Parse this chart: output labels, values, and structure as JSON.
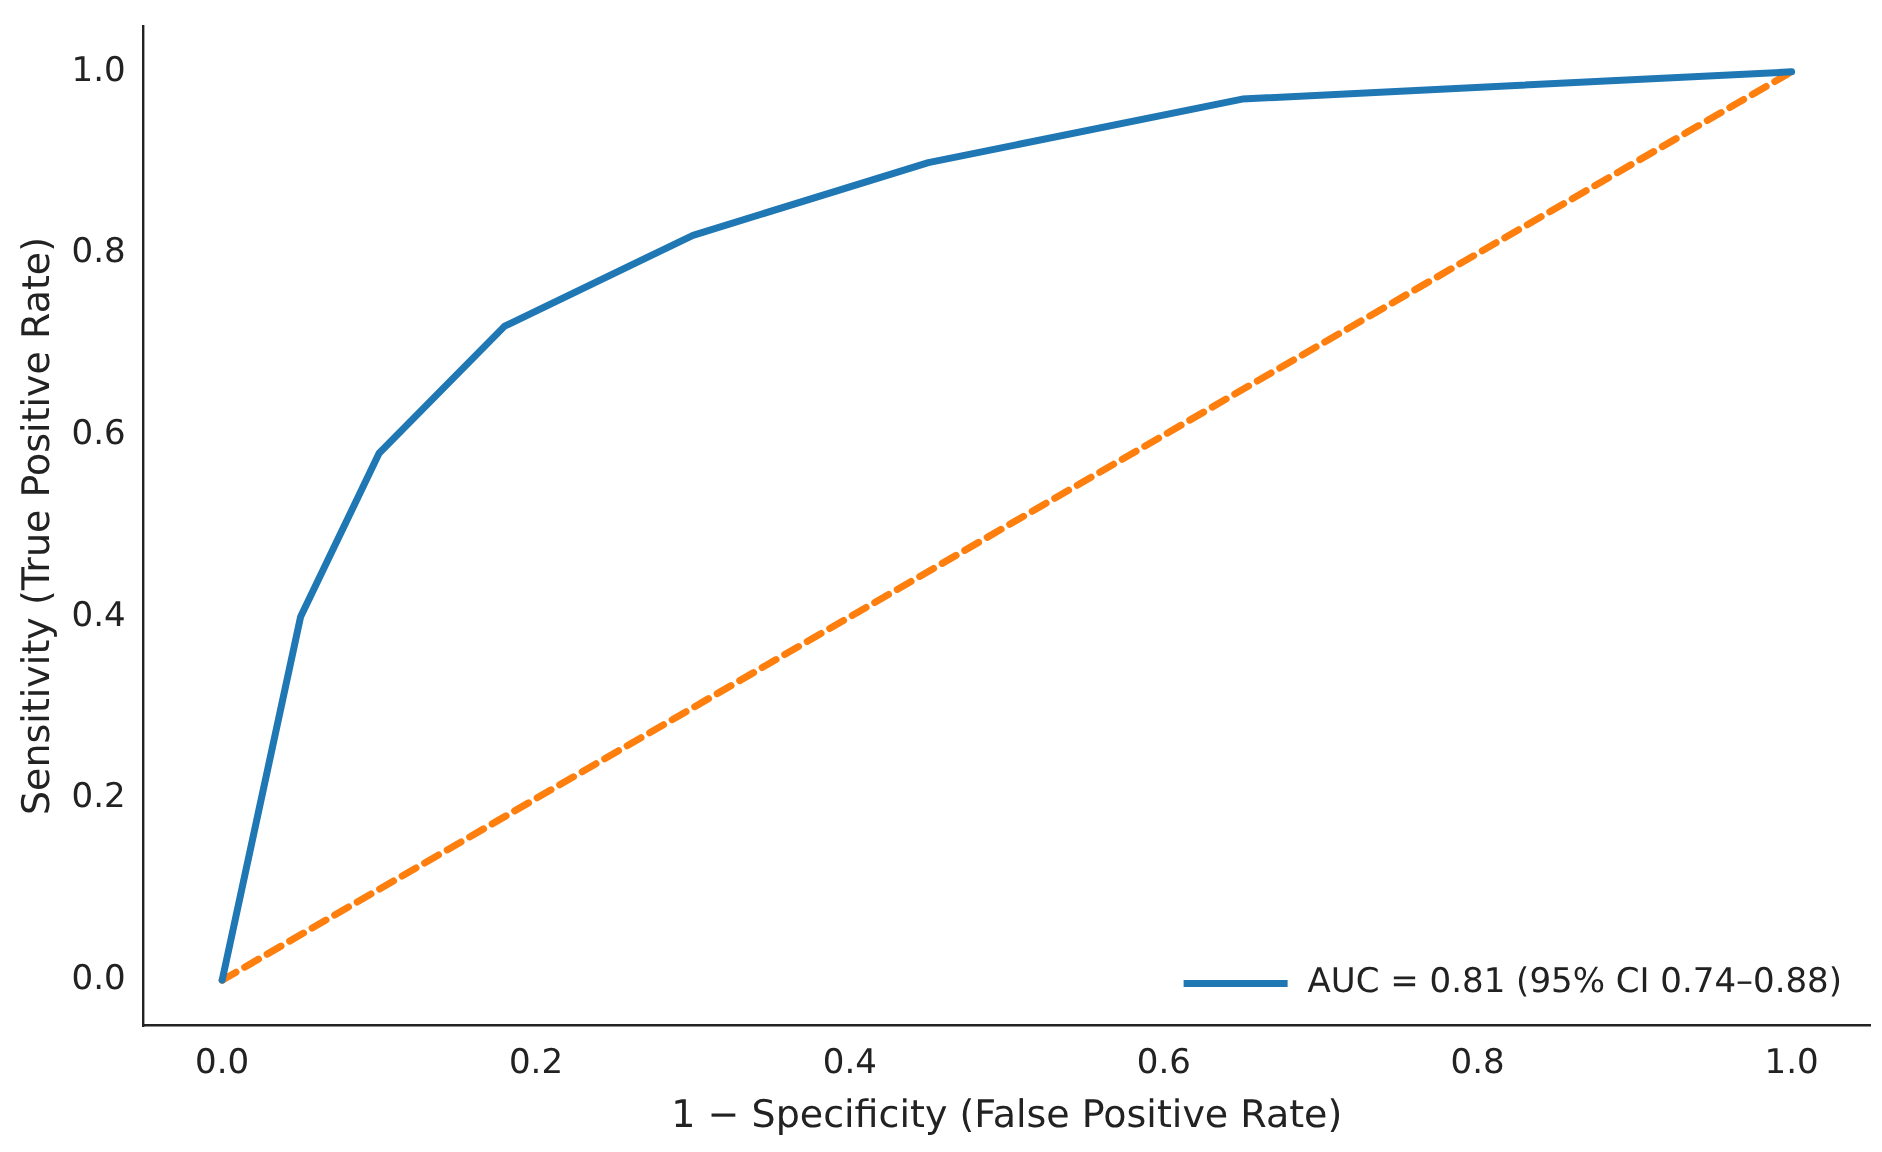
{
  "chart_data": {
    "type": "line",
    "xlabel": "1 − Specificity (False Positive Rate)",
    "ylabel": "Sensitivity (True Positive Rate)",
    "xlim": [
      -0.05,
      1.05
    ],
    "ylim": [
      -0.05,
      1.05
    ],
    "xticks": [
      {
        "value": 0,
        "label": "0.0"
      },
      {
        "value": 0.2,
        "label": "0.2"
      },
      {
        "value": 0.4,
        "label": "0.4"
      },
      {
        "value": 0.6,
        "label": "0.6"
      },
      {
        "value": 0.8,
        "label": "0.8"
      },
      {
        "value": 1,
        "label": "1.0"
      }
    ],
    "yticks": [
      {
        "value": 0,
        "label": "0.0"
      },
      {
        "value": 0.2,
        "label": "0.2"
      },
      {
        "value": 0.4,
        "label": "0.4"
      },
      {
        "value": 0.6,
        "label": "0.6"
      },
      {
        "value": 0.8,
        "label": "0.8"
      },
      {
        "value": 1,
        "label": "1.0"
      }
    ],
    "grid": false,
    "legend": "bottom right",
    "marker": "none",
    "series": [
      {
        "name": "AUC = 0.81 (95% CI 0.74–0.88)",
        "color": "#1f77b4",
        "x": [
          0,
          0.05,
          0.1,
          0.18,
          0.3,
          0.45,
          0.65,
          1
        ],
        "values": [
          0,
          0.4,
          0.58,
          0.72,
          0.82,
          0.9,
          0.97,
          1
        ],
        "line_style": "solid"
      },
      {
        "color": "#ff7f0e",
        "x": [
          0,
          1
        ],
        "values": [
          0,
          1
        ],
        "line_style": "dashed"
      }
    ]
  }
}
